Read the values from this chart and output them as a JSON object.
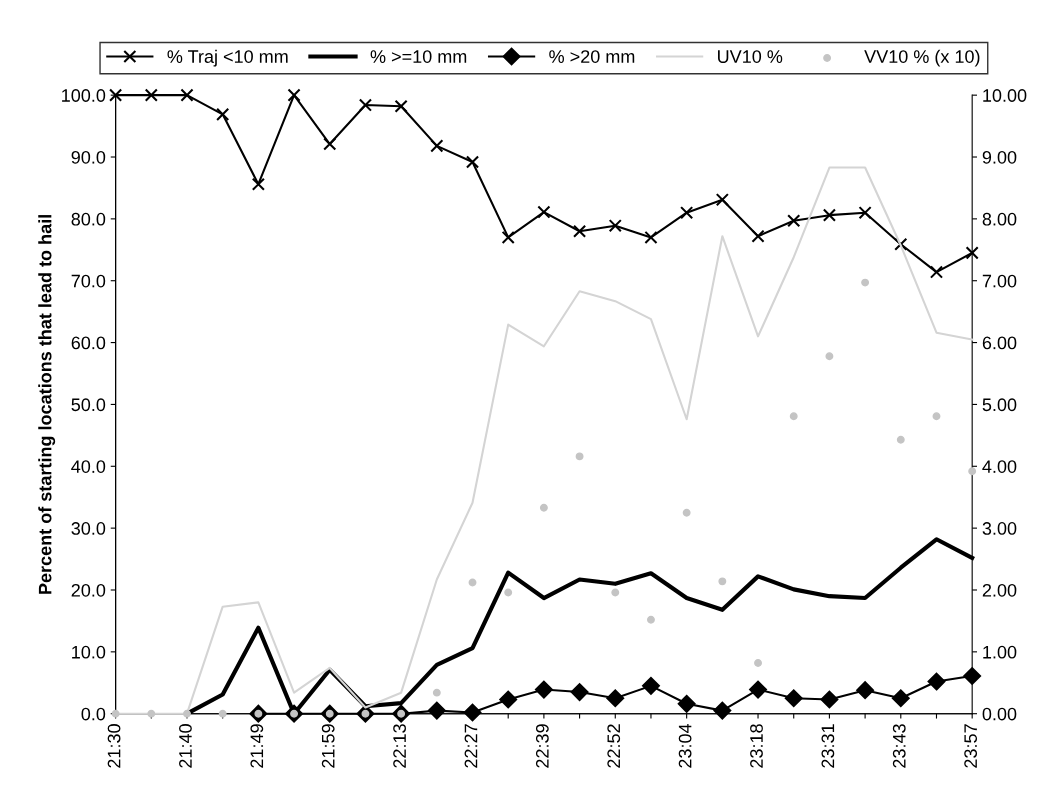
{
  "chart_data": {
    "type": "line",
    "ylabel": "Percent of starting locations that lead to hail",
    "categories": [
      "21:30",
      null,
      "21:40",
      null,
      "21:49",
      null,
      "21:59",
      null,
      "22:13",
      null,
      "22:27",
      null,
      "22:39",
      null,
      "22:52",
      null,
      "23:04",
      null,
      "23:18",
      null,
      "23:31",
      null,
      "23:43",
      null,
      "23:57"
    ],
    "ylim": [
      0,
      100
    ],
    "yticks": [
      {
        "value": 0,
        "label": "0.0"
      },
      {
        "value": 10,
        "label": "10.0"
      },
      {
        "value": 20,
        "label": "20.0"
      },
      {
        "value": 30,
        "label": "30.0"
      },
      {
        "value": 40,
        "label": "40.0"
      },
      {
        "value": 50,
        "label": "50.0"
      },
      {
        "value": 60,
        "label": "60.0"
      },
      {
        "value": 70,
        "label": "70.0"
      },
      {
        "value": 80,
        "label": "80.0"
      },
      {
        "value": 90,
        "label": "90.0"
      },
      {
        "value": 100,
        "label": "100.0"
      }
    ],
    "y2lim": [
      0,
      10
    ],
    "y2ticks": [
      {
        "value": 0,
        "label": "0.00"
      },
      {
        "value": 1,
        "label": "1.00"
      },
      {
        "value": 2,
        "label": "2.00"
      },
      {
        "value": 3,
        "label": "3.00"
      },
      {
        "value": 4,
        "label": "4.00"
      },
      {
        "value": 5,
        "label": "5.00"
      },
      {
        "value": 6,
        "label": "6.00"
      },
      {
        "value": 7,
        "label": "7.00"
      },
      {
        "value": 8,
        "label": "8.00"
      },
      {
        "value": 9,
        "label": "9.00"
      },
      {
        "value": 10,
        "label": "10.00"
      }
    ],
    "grid": false,
    "legend": "top",
    "series": [
      {
        "name": "% Traj <10 mm",
        "color": "#000000",
        "marker": "cross",
        "values": [
          100,
          100,
          100,
          96.9,
          85.6,
          100,
          92.1,
          98.4,
          98.2,
          91.8,
          89.2,
          77.0,
          81.1,
          78.0,
          78.9,
          77.0,
          81.0,
          83.1,
          77.2,
          79.7,
          80.6,
          81.0,
          75.9,
          71.4,
          74.5
        ]
      },
      {
        "name": "% >=10 mm",
        "color": "#000000",
        "marker": "none",
        "values": [
          null,
          null,
          0,
          3.1,
          13.9,
          0,
          7.1,
          1.2,
          1.7,
          7.9,
          10.6,
          22.8,
          18.7,
          21.7,
          21.0,
          22.7,
          18.7,
          16.8,
          22.2,
          20.1,
          19.0,
          18.7,
          23.6,
          28.2,
          25.2
        ]
      },
      {
        "name": "% >20 mm",
        "color": "#000000",
        "marker": "diamond",
        "values": [
          null,
          null,
          null,
          null,
          0,
          0,
          0,
          0,
          0,
          0.5,
          0.2,
          2.3,
          3.9,
          3.5,
          2.5,
          4.5,
          1.6,
          0.5,
          3.9,
          2.5,
          2.3,
          3.8,
          2.5,
          5.2,
          6.1
        ]
      },
      {
        "name": "UV10 %",
        "axis": "y2",
        "color": "#d4d4d4",
        "marker": "none",
        "values": [
          0,
          0,
          0,
          1.73,
          1.8,
          0.34,
          0.74,
          0.1,
          0.34,
          2.17,
          3.41,
          6.29,
          5.94,
          6.83,
          6.67,
          6.38,
          4.76,
          7.72,
          6.1,
          7.38,
          8.83,
          8.83,
          7.57,
          6.16,
          6.05
        ]
      },
      {
        "name": "VV10 % (x 10)",
        "type": "scatter",
        "axis": "y2",
        "color": "#c4c4c4",
        "marker": "circle",
        "values": [
          0,
          0,
          0,
          0,
          0,
          0,
          0,
          0,
          0,
          0.34,
          2.12,
          1.96,
          3.33,
          4.16,
          1.96,
          1.52,
          3.25,
          2.14,
          0.82,
          4.81,
          5.78,
          6.97,
          4.43,
          4.81,
          3.92
        ]
      }
    ]
  }
}
